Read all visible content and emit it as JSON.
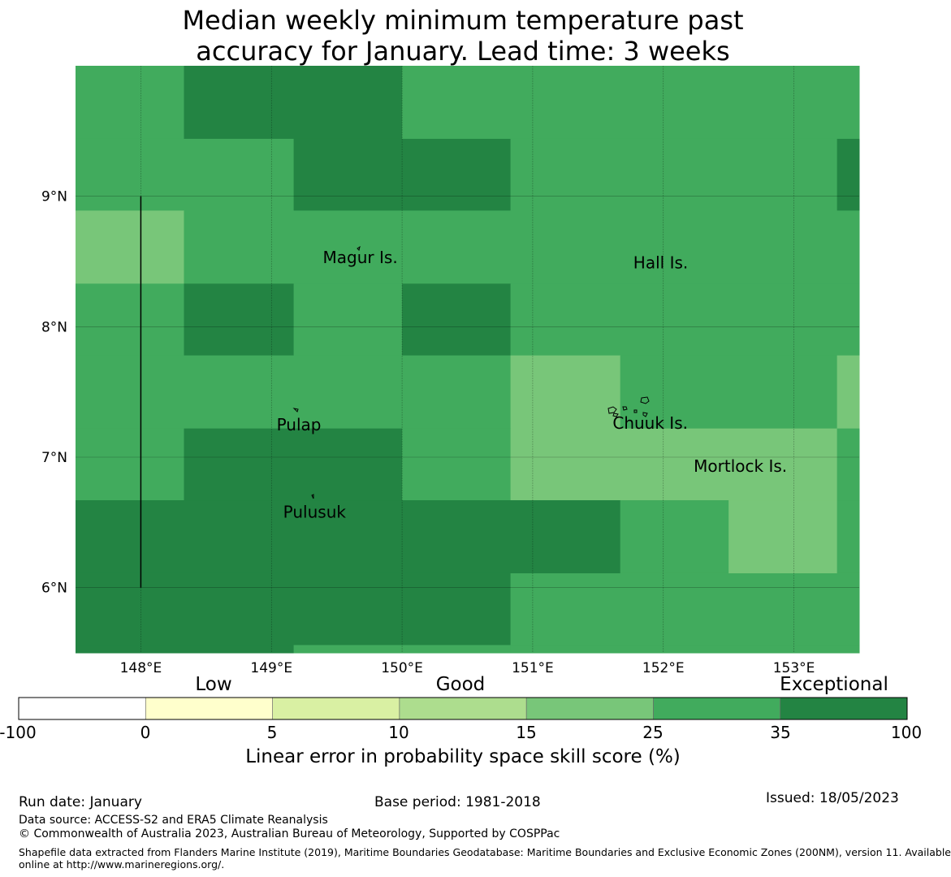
{
  "title_line1": "Median weekly minimum temperature past",
  "title_line2": "accuracy for January. Lead time: 3 weeks",
  "map": {
    "lon_range": [
      147.5,
      153.5
    ],
    "lat_range": [
      5.5,
      10.0
    ],
    "lon_ticks": [
      148,
      149,
      150,
      151,
      152,
      153
    ],
    "lat_ticks": [
      6,
      7,
      8,
      9
    ],
    "lon_labels": [
      "148°E",
      "149°E",
      "150°E",
      "151°E",
      "152°E",
      "153°E"
    ],
    "lat_labels": [
      "6°N",
      "7°N",
      "8°N",
      "9°N"
    ],
    "place_names": [
      {
        "label": "Magur Is.",
        "lon": 149.68,
        "lat": 8.53
      },
      {
        "label": "Hall Is.",
        "lon": 151.98,
        "lat": 8.49
      },
      {
        "label": "Pulap",
        "lon": 149.21,
        "lat": 7.25
      },
      {
        "label": "Chuuk Is.",
        "lon": 151.9,
        "lat": 7.26
      },
      {
        "label": "Mortlock Is.",
        "lon": 152.59,
        "lat": 6.93
      },
      {
        "label": "Pulusuk",
        "lon": 149.33,
        "lat": 6.58
      }
    ],
    "colors": {
      "1": "#78c679",
      "2": "#41ab5d",
      "3": "#238443"
    },
    "grid_cells": [
      {
        "lon0": 147.5,
        "lon1": 148.33,
        "lat0": 9.44,
        "lat1": 10.0,
        "cls": 2
      },
      {
        "lon0": 148.33,
        "lon1": 150.0,
        "lat0": 9.44,
        "lat1": 10.0,
        "cls": 3
      },
      {
        "lon0": 150.0,
        "lon1": 153.5,
        "lat0": 9.44,
        "lat1": 10.0,
        "cls": 2
      },
      {
        "lon0": 147.5,
        "lon1": 149.17,
        "lat0": 8.89,
        "lat1": 9.44,
        "cls": 2
      },
      {
        "lon0": 149.17,
        "lon1": 150.83,
        "lat0": 8.89,
        "lat1": 9.44,
        "cls": 3
      },
      {
        "lon0": 150.83,
        "lon1": 153.33,
        "lat0": 8.89,
        "lat1": 9.44,
        "cls": 2
      },
      {
        "lon0": 153.33,
        "lon1": 153.5,
        "lat0": 8.89,
        "lat1": 9.44,
        "cls": 3
      },
      {
        "lon0": 147.5,
        "lon1": 148.33,
        "lat0": 8.33,
        "lat1": 8.89,
        "cls": 1
      },
      {
        "lon0": 148.33,
        "lon1": 153.5,
        "lat0": 8.33,
        "lat1": 8.89,
        "cls": 2
      },
      {
        "lon0": 147.5,
        "lon1": 148.33,
        "lat0": 7.78,
        "lat1": 8.33,
        "cls": 2
      },
      {
        "lon0": 148.33,
        "lon1": 149.17,
        "lat0": 7.78,
        "lat1": 8.33,
        "cls": 3
      },
      {
        "lon0": 149.17,
        "lon1": 150.0,
        "lat0": 7.78,
        "lat1": 8.33,
        "cls": 2
      },
      {
        "lon0": 150.0,
        "lon1": 150.83,
        "lat0": 7.78,
        "lat1": 8.33,
        "cls": 3
      },
      {
        "lon0": 150.83,
        "lon1": 153.5,
        "lat0": 7.78,
        "lat1": 8.33,
        "cls": 2
      },
      {
        "lon0": 147.5,
        "lon1": 150.83,
        "lat0": 7.22,
        "lat1": 7.78,
        "cls": 2
      },
      {
        "lon0": 150.83,
        "lon1": 151.67,
        "lat0": 7.22,
        "lat1": 7.78,
        "cls": 1
      },
      {
        "lon0": 151.67,
        "lon1": 153.33,
        "lat0": 7.22,
        "lat1": 7.78,
        "cls": 2
      },
      {
        "lon0": 153.33,
        "lon1": 153.5,
        "lat0": 7.22,
        "lat1": 7.78,
        "cls": 1
      },
      {
        "lon0": 147.5,
        "lon1": 148.33,
        "lat0": 6.67,
        "lat1": 7.22,
        "cls": 2
      },
      {
        "lon0": 148.33,
        "lon1": 150.0,
        "lat0": 6.67,
        "lat1": 7.22,
        "cls": 3
      },
      {
        "lon0": 150.0,
        "lon1": 150.83,
        "lat0": 6.67,
        "lat1": 7.22,
        "cls": 2
      },
      {
        "lon0": 150.83,
        "lon1": 153.33,
        "lat0": 6.67,
        "lat1": 7.22,
        "cls": 1
      },
      {
        "lon0": 153.33,
        "lon1": 153.5,
        "lat0": 6.67,
        "lat1": 7.22,
        "cls": 2
      },
      {
        "lon0": 147.5,
        "lon1": 151.67,
        "lat0": 6.11,
        "lat1": 6.67,
        "cls": 3
      },
      {
        "lon0": 151.67,
        "lon1": 152.5,
        "lat0": 6.11,
        "lat1": 6.67,
        "cls": 2
      },
      {
        "lon0": 152.5,
        "lon1": 153.33,
        "lat0": 6.11,
        "lat1": 6.67,
        "cls": 1
      },
      {
        "lon0": 153.33,
        "lon1": 153.5,
        "lat0": 6.11,
        "lat1": 6.67,
        "cls": 2
      },
      {
        "lon0": 147.5,
        "lon1": 150.83,
        "lat0": 5.56,
        "lat1": 6.11,
        "cls": 3
      },
      {
        "lon0": 150.83,
        "lon1": 153.5,
        "lat0": 5.56,
        "lat1": 6.11,
        "cls": 2
      },
      {
        "lon0": 147.5,
        "lon1": 149.17,
        "lat0": 5.5,
        "lat1": 5.56,
        "cls": 3
      },
      {
        "lon0": 149.17,
        "lon1": 150.83,
        "lat0": 5.5,
        "lat1": 5.56,
        "cls": 2
      },
      {
        "lon0": 150.83,
        "lon1": 153.5,
        "lat0": 5.5,
        "lat1": 5.56,
        "cls": 2
      }
    ],
    "boundary_line": {
      "lon": 148.0,
      "lat0": 6.0,
      "lat1": 9.0
    }
  },
  "colorbar": {
    "categories": [
      "Low",
      "Good",
      "Exceptional"
    ],
    "boundaries": [
      -100,
      0,
      5,
      10,
      15,
      25,
      35,
      100
    ],
    "tick_labels": [
      "-100",
      "0",
      "5",
      "10",
      "15",
      "25",
      "35",
      "100"
    ],
    "colors": [
      "#ffffff",
      "#ffffcc",
      "#d9f0a3",
      "#addd8e",
      "#78c679",
      "#41ab5d",
      "#238443"
    ],
    "label": "Linear error in probability space skill score (%)"
  },
  "footer": {
    "run_date": "Run date: January",
    "base_period": "Base period: 1981-2018",
    "issued": "Issued: 18/05/2023",
    "data_source": "Data source: ACCESS-S2 and ERA5 Climate Reanalysis",
    "copyright": "© Commonwealth of Australia 2023, Australian Bureau of Meteorology, Supported by COSPPac",
    "shapefile_line1": "Shapefile data extracted from Flanders Marine Institute (2019), Maritime Boundaries Geodatabase: Maritime Boundaries and Exclusive Economic Zones (200NM), version 11. Available",
    "shapefile_line2": "online at http://www.marineregions.org/."
  }
}
